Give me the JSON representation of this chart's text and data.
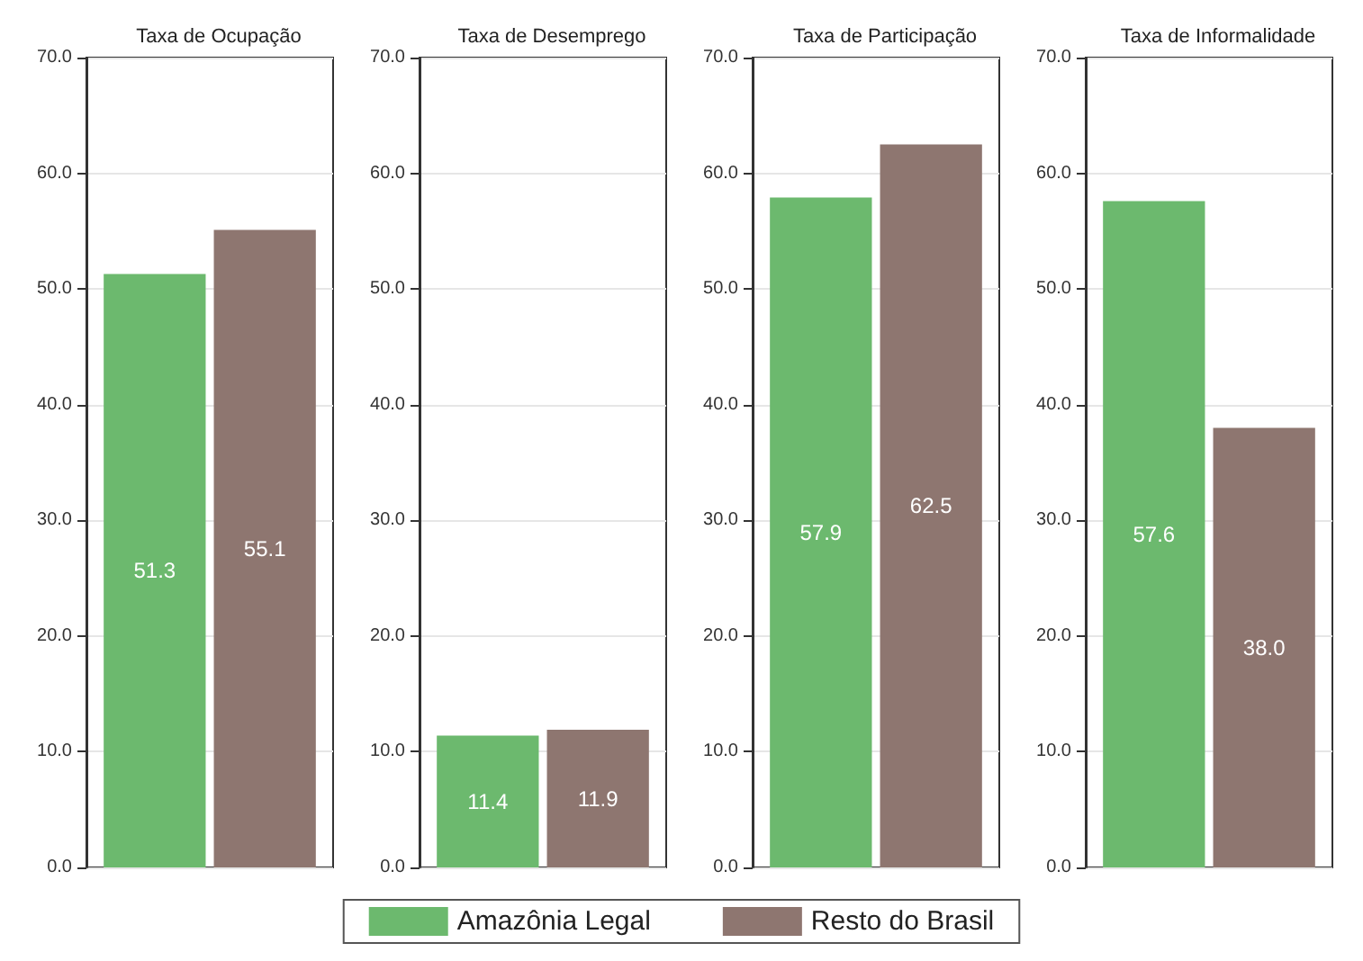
{
  "chart_data": [
    {
      "type": "bar",
      "title": "Taxa de Ocupação",
      "categories": [
        null
      ],
      "legend": "bottom",
      "grid": "y",
      "ylim": [
        0,
        70
      ],
      "yticks": [
        {
          "value": 0,
          "label": "0.0"
        },
        {
          "value": 10,
          "label": "10.0"
        },
        {
          "value": 20,
          "label": "20.0"
        },
        {
          "value": 30,
          "label": "30.0"
        },
        {
          "value": 40,
          "label": "40.0"
        },
        {
          "value": 50,
          "label": "50.0"
        },
        {
          "value": 60,
          "label": "60.0"
        },
        {
          "value": 70,
          "label": "70.0"
        }
      ],
      "series": [
        {
          "name": "Amazônia Legal",
          "color": "#6cb96e",
          "values": [
            51.3
          ],
          "value_labels": [
            "51.3"
          ]
        },
        {
          "name": "Resto do Brasil",
          "color": "#8e7670",
          "values": [
            55.1
          ],
          "value_labels": [
            "55.1"
          ]
        }
      ]
    },
    {
      "type": "bar",
      "title": "Taxa de Desemprego",
      "categories": [
        null
      ],
      "grid": "y",
      "ylim": [
        0,
        70
      ],
      "yticks": [
        {
          "value": 0,
          "label": "0.0"
        },
        {
          "value": 10,
          "label": "10.0"
        },
        {
          "value": 20,
          "label": "20.0"
        },
        {
          "value": 30,
          "label": "30.0"
        },
        {
          "value": 40,
          "label": "40.0"
        },
        {
          "value": 50,
          "label": "50.0"
        },
        {
          "value": 60,
          "label": "60.0"
        },
        {
          "value": 70,
          "label": "70.0"
        }
      ],
      "series": [
        {
          "color": "#6cb96e",
          "values": [
            11.4
          ],
          "value_labels": [
            "11.4"
          ]
        },
        {
          "color": "#8e7670",
          "values": [
            11.9
          ],
          "value_labels": [
            "11.9"
          ]
        }
      ]
    },
    {
      "type": "bar",
      "title": "Taxa de Participação",
      "categories": [
        null
      ],
      "grid": "y",
      "ylim": [
        0,
        70
      ],
      "yticks": [
        {
          "value": 0,
          "label": "0.0"
        },
        {
          "value": 10,
          "label": "10.0"
        },
        {
          "value": 20,
          "label": "20.0"
        },
        {
          "value": 30,
          "label": "30.0"
        },
        {
          "value": 40,
          "label": "40.0"
        },
        {
          "value": 50,
          "label": "50.0"
        },
        {
          "value": 60,
          "label": "60.0"
        },
        {
          "value": 70,
          "label": "70.0"
        }
      ],
      "series": [
        {
          "color": "#6cb96e",
          "values": [
            57.9
          ],
          "value_labels": [
            "57.9"
          ]
        },
        {
          "color": "#8e7670",
          "values": [
            62.5
          ],
          "value_labels": [
            "62.5"
          ]
        }
      ]
    },
    {
      "type": "bar",
      "title": "Taxa de Informalidade",
      "categories": [
        null
      ],
      "grid": "y",
      "ylim": [
        0,
        70
      ],
      "yticks": [
        {
          "value": 0,
          "label": "0.0"
        },
        {
          "value": 10,
          "label": "10.0"
        },
        {
          "value": 20,
          "label": "20.0"
        },
        {
          "value": 30,
          "label": "30.0"
        },
        {
          "value": 40,
          "label": "40.0"
        },
        {
          "value": 50,
          "label": "50.0"
        },
        {
          "value": 60,
          "label": "60.0"
        },
        {
          "value": 70,
          "label": "70.0"
        }
      ],
      "series": [
        {
          "color": "#6cb96e",
          "values": [
            57.6
          ],
          "value_labels": [
            "57.6"
          ]
        },
        {
          "color": "#8e7670",
          "values": [
            38.0
          ],
          "value_labels": [
            "38.0"
          ]
        }
      ]
    }
  ]
}
